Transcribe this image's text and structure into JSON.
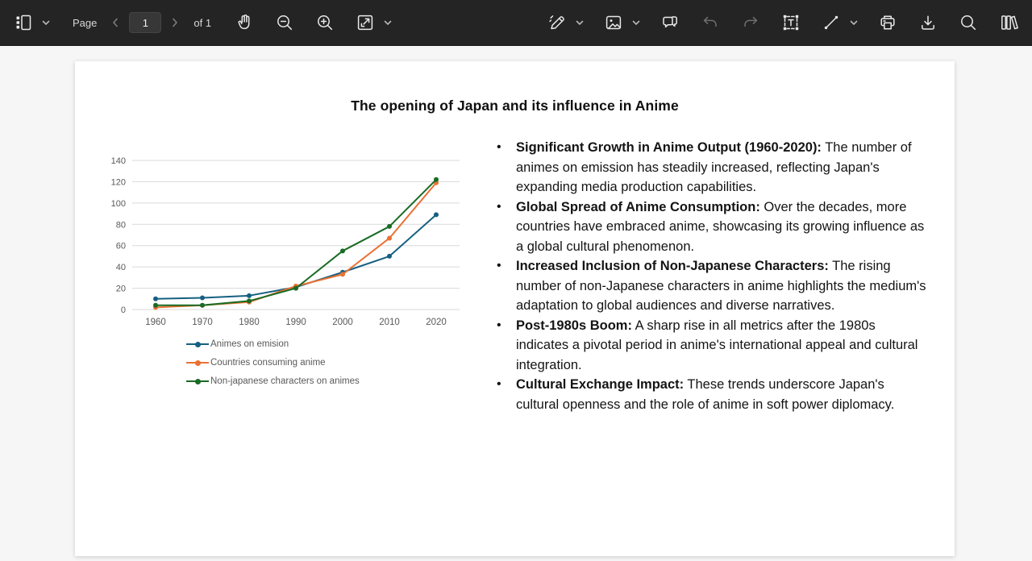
{
  "toolbar": {
    "page_label": "Page",
    "page_value": "1",
    "page_count_label": "of 1",
    "left_tools": [
      "page-thumbnails-panel",
      "page-navigation",
      "hand-tool",
      "zoom-out",
      "zoom-in",
      "fit-to-page"
    ],
    "right_tools": [
      "pen-annotate",
      "insert-image",
      "comments",
      "undo",
      "redo",
      "text-box",
      "line-shape",
      "print",
      "download",
      "search",
      "library"
    ],
    "colors": {
      "background": "#242424",
      "icon": "#e9e9e9",
      "icon_disabled": "#6e6e6e"
    }
  },
  "document": {
    "title": "The opening of Japan and its influence in Anime",
    "bullets": [
      {
        "bold": "Significant Growth in Anime Output (1960-2020):",
        "text": " The number of animes on emission has steadily increased, reflecting Japan's expanding media production capabilities."
      },
      {
        "bold": "Global Spread of Anime Consumption:",
        "text": " Over the decades, more countries have embraced anime, showcasing its growing influence as a global cultural phenomenon."
      },
      {
        "bold": "Increased Inclusion of Non-Japanese Characters:",
        "text": " The rising number of non-Japanese characters in anime highlights the medium's adaptation to global audiences and diverse narratives."
      },
      {
        "bold": "Post-1980s Boom:",
        "text": " A sharp rise in all metrics after the 1980s indicates a pivotal period in anime's international appeal and cultural integration."
      },
      {
        "bold": "Cultural Exchange Impact:",
        "text": " These trends underscore Japan's cultural openness and the role of anime in soft power diplomacy."
      }
    ]
  },
  "chart_data": {
    "type": "line",
    "title": "",
    "xlabel": "",
    "ylabel": "",
    "categories": [
      "1960",
      "1970",
      "1980",
      "1990",
      "2000",
      "2010",
      "2020"
    ],
    "series": [
      {
        "name": "Animes on emision",
        "color": "#156082",
        "values": [
          10,
          11,
          13,
          21,
          35,
          50,
          89
        ]
      },
      {
        "name": "Countries consuming anime",
        "color": "#E97132",
        "values": [
          2,
          4,
          7,
          22,
          33,
          67,
          119
        ]
      },
      {
        "name": "Non-japanese characters on animes",
        "color": "#196B24",
        "values": [
          4,
          4,
          8,
          20,
          55,
          78,
          122
        ]
      }
    ],
    "ylim": [
      0,
      140
    ],
    "ytick_step": 20,
    "grid": true,
    "legend_position": "bottom-left",
    "grid_color": "#D9D9D9",
    "tick_label_color": "#595959"
  }
}
